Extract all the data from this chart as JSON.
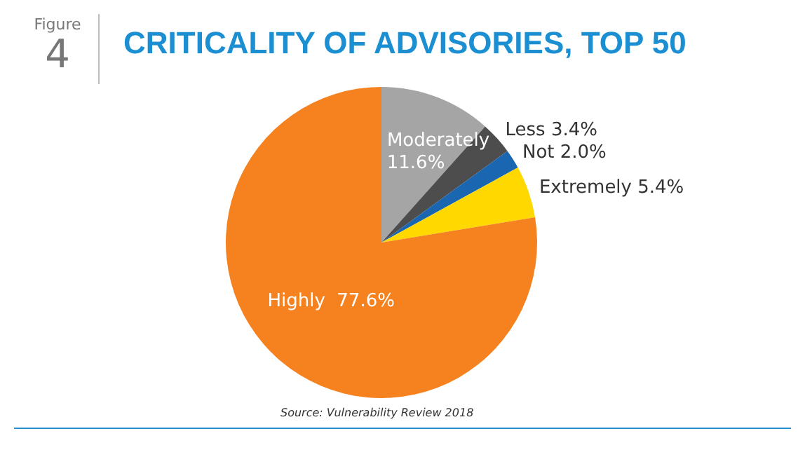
{
  "chart_data": {
    "type": "pie",
    "title": "CRITICALITY OF ADVISORIES, TOP 50",
    "categories": [
      "Moderately",
      "Less",
      "Not",
      "Extremely",
      "Highly"
    ],
    "values": [
      11.6,
      3.4,
      2.0,
      5.4,
      77.6
    ],
    "value_labels": [
      "11.6%",
      "3.4%",
      "2.0%",
      "5.4%",
      "77.6%"
    ],
    "colors": [
      "#a5a5a5",
      "#4d4d4d",
      "#1a66b0",
      "#ffd800",
      "#f5821f"
    ],
    "annotations": [
      "Figure",
      "4",
      "Source: Vulnerability Review 2018"
    ],
    "legend": false
  }
}
